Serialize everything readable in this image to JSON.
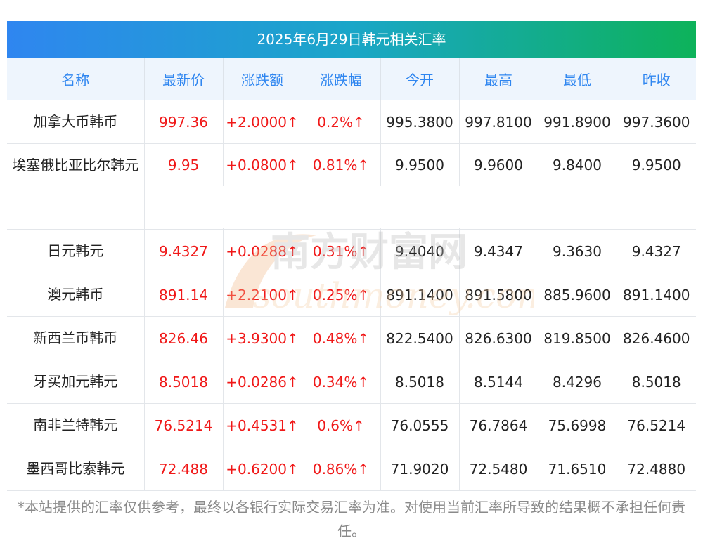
{
  "title": "2025年6月29日韩元相关汇率",
  "headers": [
    "名称",
    "最新价",
    "涨跌额",
    "涨跌幅",
    "今开",
    "最高",
    "最低",
    "昨收"
  ],
  "rows": [
    {
      "name": "加拿大币韩币",
      "latest": "997.36",
      "change": "+2.0000↑",
      "change_pct": "0.2%↑",
      "open": "995.3800",
      "high": "997.8100",
      "low": "991.8900",
      "prev_close": "997.3600"
    },
    {
      "name": "埃塞俄比亚比尔韩元",
      "latest": "9.95",
      "change": "+0.0800↑",
      "change_pct": "0.81%↑",
      "open": "9.9500",
      "high": "9.9600",
      "low": "9.8400",
      "prev_close": "9.9500"
    },
    {
      "name": "日元韩元",
      "latest": "9.4327",
      "change": "+0.0288↑",
      "change_pct": "0.31%↑",
      "open": "9.4040",
      "high": "9.4347",
      "low": "9.3630",
      "prev_close": "9.4327"
    },
    {
      "name": "澳元韩币",
      "latest": "891.14",
      "change": "+2.2100↑",
      "change_pct": "0.25%↑",
      "open": "891.1400",
      "high": "891.5800",
      "low": "885.9600",
      "prev_close": "891.1400"
    },
    {
      "name": "新西兰币韩币",
      "latest": "826.46",
      "change": "+3.9300↑",
      "change_pct": "0.48%↑",
      "open": "822.5400",
      "high": "826.6300",
      "low": "819.8500",
      "prev_close": "826.4600"
    },
    {
      "name": "牙买加元韩元",
      "latest": "8.5018",
      "change": "+0.0286↑",
      "change_pct": "0.34%↑",
      "open": "8.5018",
      "high": "8.5144",
      "low": "8.4296",
      "prev_close": "8.5018"
    },
    {
      "name": "南非兰特韩元",
      "latest": "76.5214",
      "change": "+0.4531↑",
      "change_pct": "0.6%↑",
      "open": "76.0555",
      "high": "76.7864",
      "low": "75.6998",
      "prev_close": "76.5214"
    },
    {
      "name": "墨西哥比索韩元",
      "latest": "72.488",
      "change": "+0.6200↑",
      "change_pct": "0.86%↑",
      "open": "71.9020",
      "high": "72.5480",
      "low": "71.6510",
      "prev_close": "72.4880"
    }
  ],
  "watermark": {
    "cn": "南方财富网",
    "en": "southmoney.com"
  },
  "disclaimer": "*本站提供的汇率仅供参考，最终以各银行实际交易汇率为准。对使用当前汇率所导致的结果概不承担任何责任。",
  "colors": {
    "header_text": "#2f86f0",
    "header_bg": "#eef5fd",
    "up": "#f01818",
    "gradient_start": "#2f86f0",
    "gradient_end": "#0db25a"
  }
}
